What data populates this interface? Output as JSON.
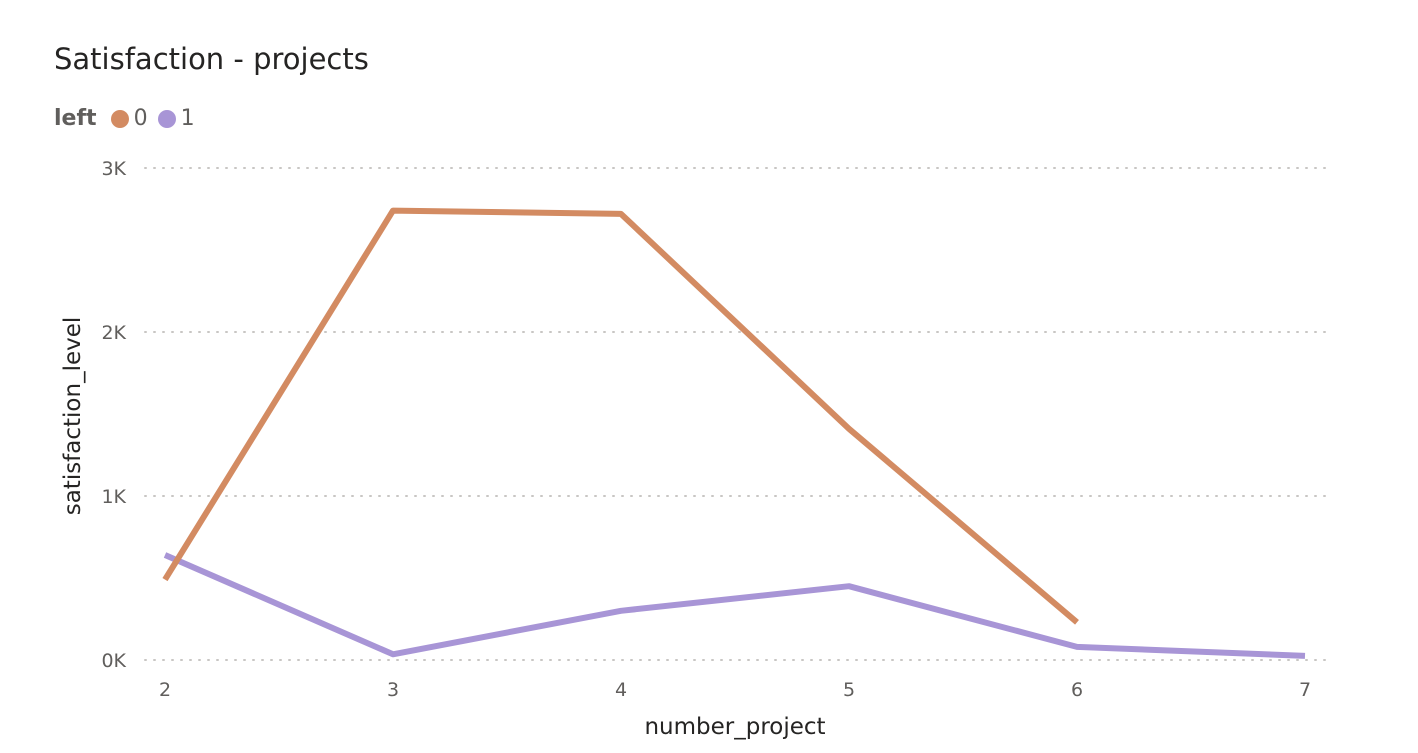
{
  "chart_data": {
    "type": "line",
    "title": "Satisfaction - projects",
    "xlabel": "number_project",
    "ylabel": "satisfaction_level",
    "legend_title": "left",
    "legend_position": "top-left",
    "grid": true,
    "x": [
      2,
      3,
      4,
      5,
      6,
      7
    ],
    "x_tick_labels": [
      "2",
      "3",
      "4",
      "5",
      "6",
      "7"
    ],
    "ylim": [
      0,
      3000
    ],
    "y_ticks": [
      0,
      1000,
      2000,
      3000
    ],
    "y_tick_labels": [
      "0K",
      "1K",
      "2K",
      "3K"
    ],
    "series": [
      {
        "name": "0",
        "color": "#D38B62",
        "x": [
          2,
          3,
          4,
          5,
          6
        ],
        "values": [
          490,
          2740,
          2720,
          1410,
          230
        ]
      },
      {
        "name": "1",
        "color": "#A895D6",
        "x": [
          2,
          3,
          4,
          5,
          6,
          7
        ],
        "values": [
          640,
          35,
          300,
          450,
          80,
          25
        ]
      }
    ]
  }
}
